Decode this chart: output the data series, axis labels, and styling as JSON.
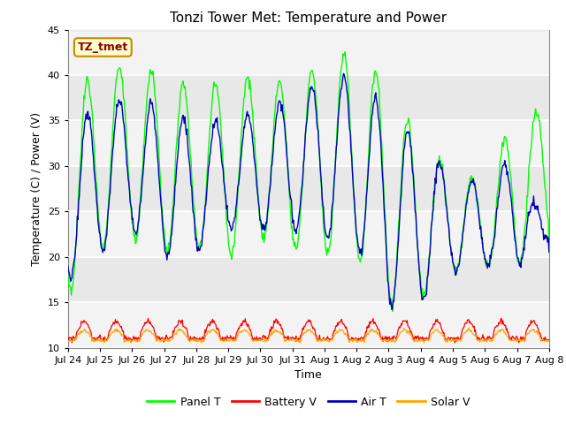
{
  "title": "Tonzi Tower Met: Temperature and Power",
  "ylabel": "Temperature (C) / Power (V)",
  "xlabel": "Time",
  "annotation": "TZ_tmet",
  "ylim": [
    10,
    45
  ],
  "yticks": [
    10,
    15,
    20,
    25,
    30,
    35,
    40,
    45
  ],
  "xtick_labels": [
    "Jul 24",
    "Jul 25",
    "Jul 26",
    "Jul 27",
    "Jul 28",
    "Jul 29",
    "Jul 30",
    "Jul 31",
    "Aug 1",
    "Aug 2",
    "Aug 3",
    "Aug 4",
    "Aug 5",
    "Aug 6",
    "Aug 7",
    "Aug 8"
  ],
  "bg_color": "#e8e8e8",
  "bg_band_color": "#d0d0d0",
  "panel_color": "#00ff00",
  "battery_color": "#ff0000",
  "air_color": "#0000bb",
  "solar_color": "#ffa500",
  "legend_labels": [
    "Panel T",
    "Battery V",
    "Air T",
    "Solar V"
  ],
  "n_days": 15,
  "pts_per_day": 48,
  "panel_peaks": [
    37,
    41,
    41,
    40,
    38.5,
    39.5,
    40,
    39,
    41.5,
    42.8,
    39,
    32.5,
    29.5,
    28.5,
    36,
    36
  ],
  "panel_troughs": [
    15.5,
    21,
    22,
    20.5,
    21,
    20,
    22,
    21,
    20.5,
    20,
    14.5,
    15.5,
    18.5,
    19,
    19,
    22
  ],
  "air_peaks": [
    34,
    37,
    37.5,
    36.5,
    34.5,
    35,
    36,
    37.5,
    39.8,
    40,
    35.8,
    32.5,
    29,
    28,
    31.5,
    22
  ],
  "air_troughs": [
    17.5,
    20.5,
    23,
    20,
    20.5,
    23,
    23,
    23,
    22,
    21,
    14.5,
    15,
    18.5,
    19,
    19,
    22
  ],
  "battery_base": 11.0,
  "battery_peak": 13.0,
  "solar_base": 10.8,
  "solar_peak": 12.0,
  "title_fontsize": 11,
  "label_fontsize": 9,
  "tick_fontsize": 8,
  "annot_fontsize": 9,
  "legend_fontsize": 9
}
